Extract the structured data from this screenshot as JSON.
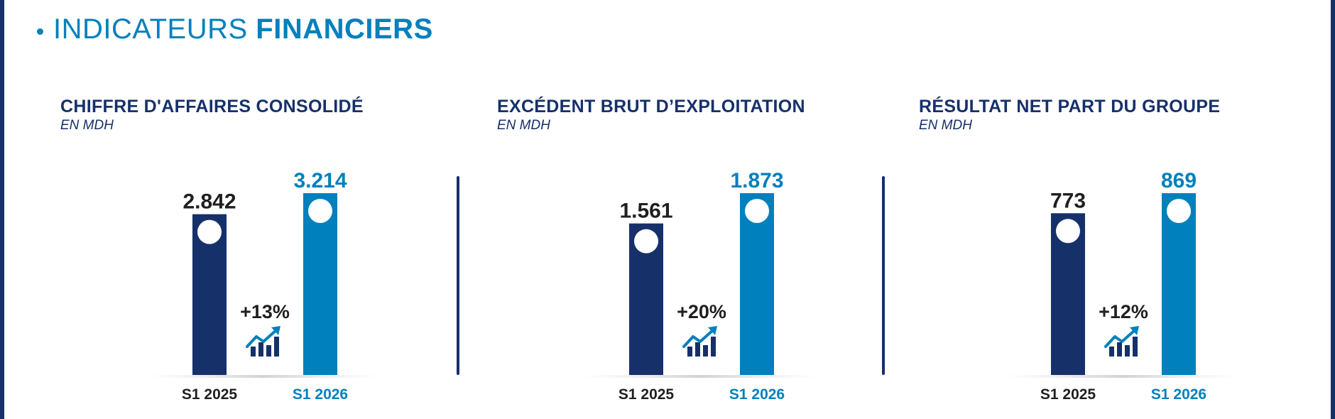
{
  "header": {
    "bullet": "•",
    "title_light": "INDICATEURS",
    "title_bold": "FINANCIERS"
  },
  "colors": {
    "dark": "#16306a",
    "accent": "#0080bd",
    "text": "#1f1f1f"
  },
  "trend_icon": "chart-growth-arrow-icon",
  "chart_data": [
    {
      "type": "bar",
      "title": "CHIFFRE D'AFFAIRES CONSOLIDÉ",
      "subtitle": "EN MDH",
      "categories": [
        "S1 2025",
        "S1 2026"
      ],
      "values": [
        2842,
        3214
      ],
      "value_labels": [
        "2.842",
        "3.214"
      ],
      "change_label": "+13%"
    },
    {
      "type": "bar",
      "title": "EXCÉDENT BRUT D’EXPLOITATION",
      "subtitle": "EN MDH",
      "categories": [
        "S1 2025",
        "S1 2026"
      ],
      "values": [
        1561,
        1873
      ],
      "value_labels": [
        "1.561",
        "1.873"
      ],
      "change_label": "+20%"
    },
    {
      "type": "bar",
      "title": "RÉSULTAT NET PART DU GROUPE",
      "subtitle": "EN MDH",
      "categories": [
        "S1 2025",
        "S1 2026"
      ],
      "values": [
        773,
        869
      ],
      "value_labels": [
        "773",
        "869"
      ],
      "change_label": "+12%"
    }
  ]
}
